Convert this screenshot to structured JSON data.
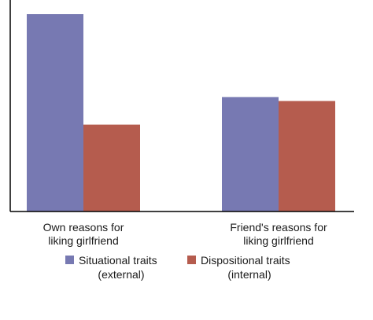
{
  "chart_data": {
    "type": "bar",
    "title": "",
    "xlabel": "",
    "ylabel": "",
    "ylim": [
      0,
      100
    ],
    "grid": false,
    "legend_position": "bottom",
    "categories": [
      [
        "Own reasons for",
        "liking girlfriend"
      ],
      [
        "Friend's reasons for",
        "liking girlfriend"
      ]
    ],
    "series": [
      {
        "name": [
          "Situational traits",
          "(external)"
        ],
        "color": "#7779b2",
        "values": [
          100,
          58
        ]
      },
      {
        "name": [
          "Dispositional traits",
          "(internal)"
        ],
        "color": "#b55c4e",
        "values": [
          44,
          56
        ]
      }
    ]
  }
}
